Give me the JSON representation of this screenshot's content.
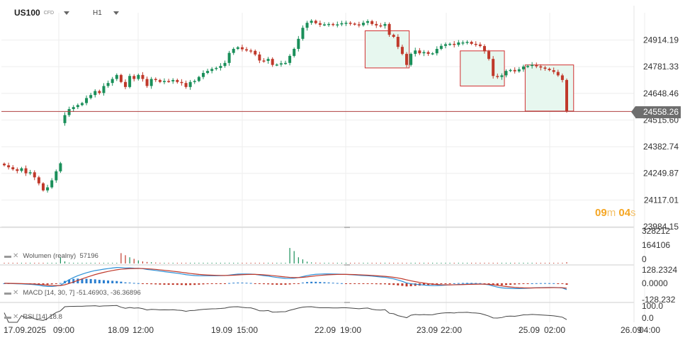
{
  "header": {
    "symbol": "US100",
    "instrument_type": "CFD",
    "timeframe": "H1"
  },
  "countdown": {
    "minutes": "09",
    "m_unit": "m",
    "seconds": "04",
    "s_unit": "s"
  },
  "price_badge": "24558.26",
  "colors": {
    "up": "#1a8f5a",
    "down": "#c0392b",
    "price_line": "#b04040",
    "box_fill": "#e7f7ef",
    "box_stroke": "#d03030",
    "macd_line": "#2b8fd6",
    "signal_line": "#c0392b",
    "rsi_line": "#444444",
    "grid": "#eeeeee"
  },
  "chart_data": [
    {
      "type": "candlestick",
      "title": "US100",
      "y_ticks": [
        "24914.19",
        "24781.33",
        "24648.46",
        "24515.60",
        "24382.74",
        "24249.87",
        "24117.01",
        "23984.15"
      ],
      "ylim": [
        23984.15,
        25050
      ],
      "x_ticks": [
        "17.09.2025",
        "09:00",
        "18.09",
        "12:00",
        "19.09",
        "15:00",
        "22.09",
        "19:00",
        "23.09",
        "22:00",
        "25.09",
        "02:00",
        "26.09",
        "04:00"
      ],
      "current_price": 24558.26,
      "highlight_boxes": [
        {
          "start_index": 84,
          "end_index": 93,
          "low": 24775,
          "high": 24960
        },
        {
          "start_index": 106,
          "end_index": 115,
          "low": 24685,
          "high": 24860
        },
        {
          "start_index": 121,
          "end_index": 131,
          "low": 24560,
          "high": 24790
        }
      ],
      "close": [
        24290,
        24280,
        24270,
        24262,
        24275,
        24250,
        24255,
        24230,
        24200,
        24165,
        24180,
        24215,
        24260,
        24300,
        24540,
        24570,
        24580,
        24590,
        24600,
        24625,
        24640,
        24660,
        24650,
        24685,
        24700,
        24720,
        24740,
        24705,
        24680,
        24735,
        24720,
        24740,
        24720,
        24685,
        24720,
        24715,
        24705,
        24710,
        24708,
        24715,
        24705,
        24700,
        24680,
        24705,
        24710,
        24730,
        24750,
        24760,
        24770,
        24775,
        24785,
        24800,
        24850,
        24870,
        24878,
        24868,
        24862,
        24860,
        24842,
        24812,
        24810,
        24820,
        24790,
        24792,
        24798,
        24800,
        24835,
        24870,
        24920,
        24975,
        25000,
        25010,
        24998,
        24990,
        24992,
        24994,
        24990,
        24992,
        24998,
        25000,
        24996,
        24992,
        24988,
        25000,
        25008,
        24994,
        24987,
        24985,
        24994,
        24940,
        24930,
        24880,
        24845,
        24790,
        24845,
        24862,
        24848,
        24854,
        24845,
        24848,
        24870,
        24885,
        24893,
        24895,
        24890,
        24902,
        24902,
        24905,
        24895,
        24892,
        24884,
        24858,
        24820,
        24735,
        24730,
        24738,
        24760,
        24765,
        24758,
        24768,
        24782,
        24785,
        24790,
        24783,
        24777,
        24771,
        24764,
        24755,
        24738,
        24715,
        24560
      ],
      "volume_label": "Wolumen (realny)",
      "volume_value": "57196",
      "volume_ticks": [
        "328212",
        "164106",
        "0"
      ],
      "volume": [
        6000,
        5500,
        4000,
        5000,
        6000,
        5000,
        7000,
        3000,
        2000,
        3000,
        4000,
        3000,
        2000,
        60000,
        20000,
        8000,
        5000,
        4000,
        3000,
        3000,
        4000,
        3000,
        2000,
        3000,
        3000,
        4000,
        5000,
        100000,
        80000,
        60000,
        45000,
        30000,
        20000,
        15000,
        12000,
        9000,
        7000,
        5000,
        4000,
        3000,
        3000,
        3000,
        4000,
        3000,
        3000,
        4000,
        4000,
        5000,
        5000,
        4000,
        3000,
        3000,
        6000,
        4000,
        2000,
        3000,
        4000,
        4000,
        6000,
        5000,
        4000,
        3000,
        6000,
        3000,
        3000,
        3000,
        150000,
        120000,
        60000,
        40000,
        18000,
        10000,
        8000,
        6000,
        5000,
        4000,
        3000,
        3000,
        3000,
        4000,
        3000,
        3000,
        3000,
        4000,
        5000,
        5000,
        4000,
        4000,
        7000,
        3000,
        4000,
        4000,
        5000,
        3000,
        5000,
        3000,
        3000,
        3000,
        4000,
        3000,
        4000,
        3000,
        3000,
        3000,
        4000,
        3000,
        5000,
        3000,
        4000,
        3000,
        4000,
        4000,
        4000,
        3000,
        4000,
        3000,
        4000,
        3000,
        4000,
        3000,
        6000,
        4000,
        3000,
        3000,
        3000,
        4000,
        4000,
        3000,
        4000,
        4000,
        12000
      ],
      "macd_label": "MACD [14, 30, 7]",
      "macd_value": "-51.46903",
      "signal_value": "-36.36896",
      "macd_ticks": [
        "128.2324",
        "0.0000",
        "-128.232"
      ],
      "macd_ylim": [
        -128.232,
        128.2324
      ],
      "rsi_label": "RSI [14]",
      "rsi_value": "18.8",
      "rsi_ticks": [
        "100.0",
        "0.0"
      ]
    }
  ]
}
